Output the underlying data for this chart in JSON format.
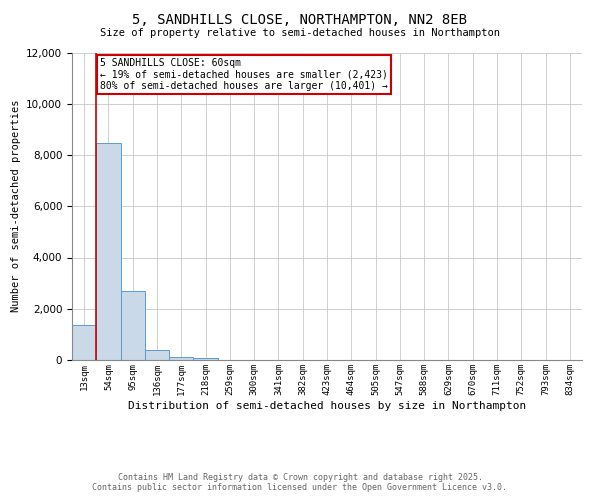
{
  "title": "5, SANDHILLS CLOSE, NORTHAMPTON, NN2 8EB",
  "subtitle": "Size of property relative to semi-detached houses in Northampton",
  "xlabel": "Distribution of semi-detached houses by size in Northampton",
  "ylabel": "Number of semi-detached properties",
  "footnote1": "Contains HM Land Registry data © Crown copyright and database right 2025.",
  "footnote2": "Contains public sector information licensed under the Open Government Licence v3.0.",
  "categories": [
    "13sqm",
    "54sqm",
    "95sqm",
    "136sqm",
    "177sqm",
    "218sqm",
    "259sqm",
    "300sqm",
    "341sqm",
    "382sqm",
    "423sqm",
    "464sqm",
    "505sqm",
    "547sqm",
    "588sqm",
    "629sqm",
    "670sqm",
    "711sqm",
    "752sqm",
    "793sqm",
    "834sqm"
  ],
  "values": [
    1350,
    8450,
    2700,
    380,
    100,
    80,
    0,
    0,
    0,
    0,
    0,
    0,
    0,
    0,
    0,
    0,
    0,
    0,
    0,
    0,
    0
  ],
  "bar_color": "#c9d9e8",
  "bar_edge_color": "#5b9bd5",
  "ylim": [
    0,
    12000
  ],
  "yticks": [
    0,
    2000,
    4000,
    6000,
    8000,
    10000,
    12000
  ],
  "property_line_color": "#cc0000",
  "annotation_box_text": "5 SANDHILLS CLOSE: 60sqm\n← 19% of semi-detached houses are smaller (2,423)\n80% of semi-detached houses are larger (10,401) →",
  "annotation_box_edge_color": "#cc0000",
  "background_color": "#ffffff",
  "grid_color": "#c8c8c8"
}
